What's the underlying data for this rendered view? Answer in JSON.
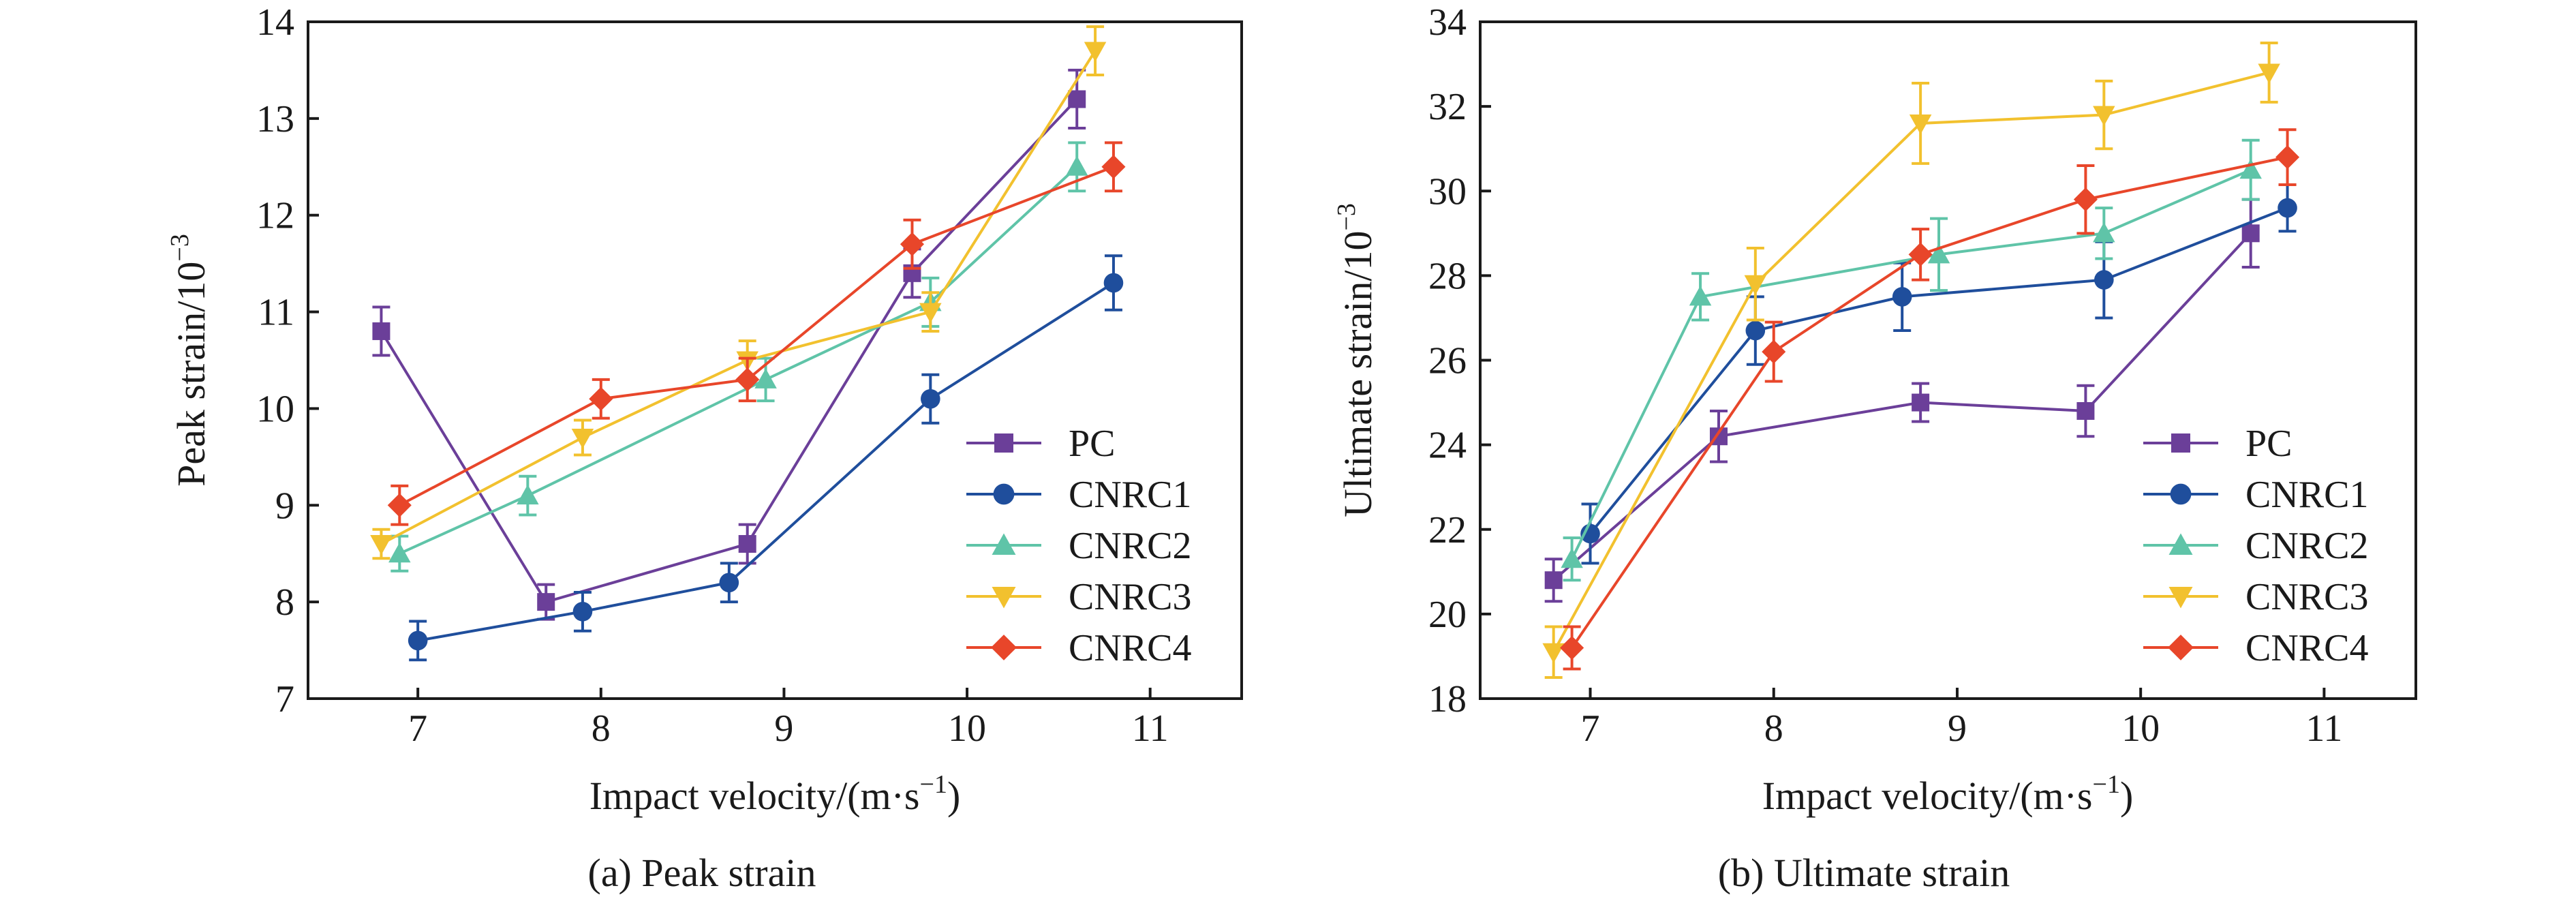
{
  "chart_data": [
    {
      "type": "line",
      "title": "",
      "caption": "(a) Peak strain",
      "xlabel_main": "Impact velocity/(m·s",
      "xlabel_sup": "−1",
      "xlabel_end": ")",
      "ylabel_main": "Peak strain/10",
      "ylabel_sup": "−3",
      "xlim": [
        6.4,
        11.5
      ],
      "ylim": [
        7,
        14
      ],
      "xticks": [
        7,
        8,
        9,
        10,
        11
      ],
      "yticks": [
        7,
        8,
        9,
        10,
        11,
        12,
        13,
        14
      ],
      "legend_position": "lower-right",
      "series": [
        {
          "name": "PC",
          "color": "#6b3f99",
          "marker": "square",
          "x": [
            6.8,
            7.7,
            8.8,
            9.7,
            10.6
          ],
          "y": [
            10.8,
            8.0,
            8.6,
            11.4,
            13.2
          ],
          "err": [
            0.25,
            0.18,
            0.2,
            0.25,
            0.3
          ]
        },
        {
          "name": "CNRC1",
          "color": "#1f4e9c",
          "marker": "circle",
          "x": [
            7.0,
            7.9,
            8.7,
            9.8,
            10.8
          ],
          "y": [
            7.6,
            7.9,
            8.2,
            10.1,
            11.3
          ],
          "err": [
            0.2,
            0.2,
            0.2,
            0.25,
            0.28
          ]
        },
        {
          "name": "CNRC2",
          "color": "#5fc4a8",
          "marker": "triangle-up",
          "x": [
            6.9,
            7.6,
            8.9,
            9.8,
            10.6
          ],
          "y": [
            8.5,
            9.1,
            10.3,
            11.1,
            12.5
          ],
          "err": [
            0.18,
            0.2,
            0.22,
            0.25,
            0.25
          ]
        },
        {
          "name": "CNRC3",
          "color": "#f2c12e",
          "marker": "triangle-down",
          "x": [
            6.8,
            7.9,
            8.8,
            9.8,
            10.7
          ],
          "y": [
            8.6,
            9.7,
            10.5,
            11.0,
            13.7
          ],
          "err": [
            0.15,
            0.18,
            0.2,
            0.2,
            0.25
          ]
        },
        {
          "name": "CNRC4",
          "color": "#e8462a",
          "marker": "diamond",
          "x": [
            6.9,
            8.0,
            8.8,
            9.7,
            10.8
          ],
          "y": [
            9.0,
            10.1,
            10.3,
            11.7,
            12.5
          ],
          "err": [
            0.2,
            0.2,
            0.22,
            0.25,
            0.25
          ]
        }
      ]
    },
    {
      "type": "line",
      "title": "",
      "caption": "(b) Ultimate strain",
      "xlabel_main": "Impact velocity/(m·s",
      "xlabel_sup": "−1",
      "xlabel_end": ")",
      "ylabel_main": "Ultimate strain/10",
      "ylabel_sup": "−3",
      "xlim": [
        6.4,
        11.5
      ],
      "ylim": [
        18,
        34
      ],
      "xticks": [
        7,
        8,
        9,
        10,
        11
      ],
      "yticks": [
        18,
        20,
        22,
        24,
        26,
        28,
        30,
        32,
        34
      ],
      "legend_position": "lower-right",
      "series": [
        {
          "name": "PC",
          "color": "#6b3f99",
          "marker": "square",
          "x": [
            6.8,
            7.7,
            8.8,
            9.7,
            10.6
          ],
          "y": [
            20.8,
            24.2,
            25.0,
            24.8,
            29.0
          ],
          "err": [
            0.5,
            0.6,
            0.45,
            0.6,
            0.8
          ]
        },
        {
          "name": "CNRC1",
          "color": "#1f4e9c",
          "marker": "circle",
          "x": [
            7.0,
            7.9,
            8.7,
            9.8,
            10.8
          ],
          "y": [
            21.9,
            26.7,
            27.5,
            27.9,
            29.6
          ],
          "err": [
            0.7,
            0.8,
            0.8,
            0.9,
            0.55
          ]
        },
        {
          "name": "CNRC2",
          "color": "#5fc4a8",
          "marker": "triangle-up",
          "x": [
            6.9,
            7.6,
            8.9,
            9.8,
            10.6
          ],
          "y": [
            21.3,
            27.5,
            28.5,
            29.0,
            30.5
          ],
          "err": [
            0.5,
            0.55,
            0.85,
            0.6,
            0.7
          ]
        },
        {
          "name": "CNRC3",
          "color": "#f2c12e",
          "marker": "triangle-down",
          "x": [
            6.8,
            7.9,
            8.8,
            9.8,
            10.7
          ],
          "y": [
            19.1,
            27.8,
            31.6,
            31.8,
            32.8
          ],
          "err": [
            0.6,
            0.85,
            0.95,
            0.8,
            0.7
          ]
        },
        {
          "name": "CNRC4",
          "color": "#e8462a",
          "marker": "diamond",
          "x": [
            6.9,
            8.0,
            8.8,
            9.7,
            10.8
          ],
          "y": [
            19.2,
            26.2,
            28.5,
            29.8,
            30.8
          ],
          "err": [
            0.5,
            0.7,
            0.6,
            0.8,
            0.65
          ]
        }
      ]
    }
  ]
}
